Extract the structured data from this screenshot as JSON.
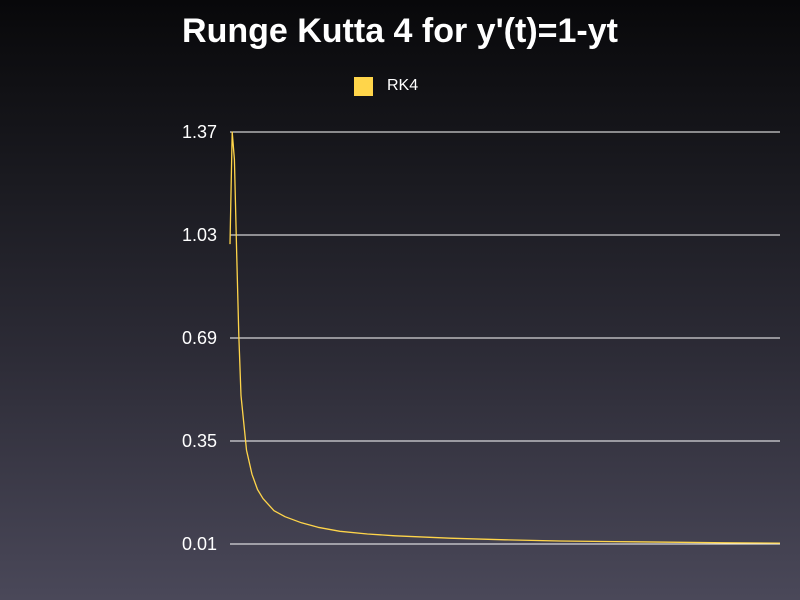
{
  "chart_data": {
    "type": "line",
    "title": "Runge Kutta 4 for y'(t)=1-yt",
    "xlabel": "",
    "ylabel": "",
    "yticks": [
      "0.01",
      "0.35",
      "0.69",
      "1.03",
      "1.37"
    ],
    "ylim": [
      0.01,
      1.37
    ],
    "xlim": [
      0,
      1
    ],
    "grid": true,
    "legend_position": "top-center",
    "series": [
      {
        "name": "RK4",
        "color": "#ffd54a",
        "x": [
          0,
          0.004,
          0.008,
          0.012,
          0.016,
          0.02,
          0.03,
          0.04,
          0.05,
          0.06,
          0.08,
          0.1,
          0.13,
          0.16,
          0.2,
          0.25,
          0.3,
          0.4,
          0.5,
          0.6,
          0.7,
          0.8,
          0.9,
          1.0
        ],
        "values": [
          1.0,
          1.37,
          1.28,
          0.98,
          0.7,
          0.5,
          0.32,
          0.24,
          0.19,
          0.16,
          0.12,
          0.1,
          0.08,
          0.065,
          0.052,
          0.043,
          0.037,
          0.029,
          0.024,
          0.02,
          0.018,
          0.016,
          0.014,
          0.013
        ]
      }
    ]
  }
}
